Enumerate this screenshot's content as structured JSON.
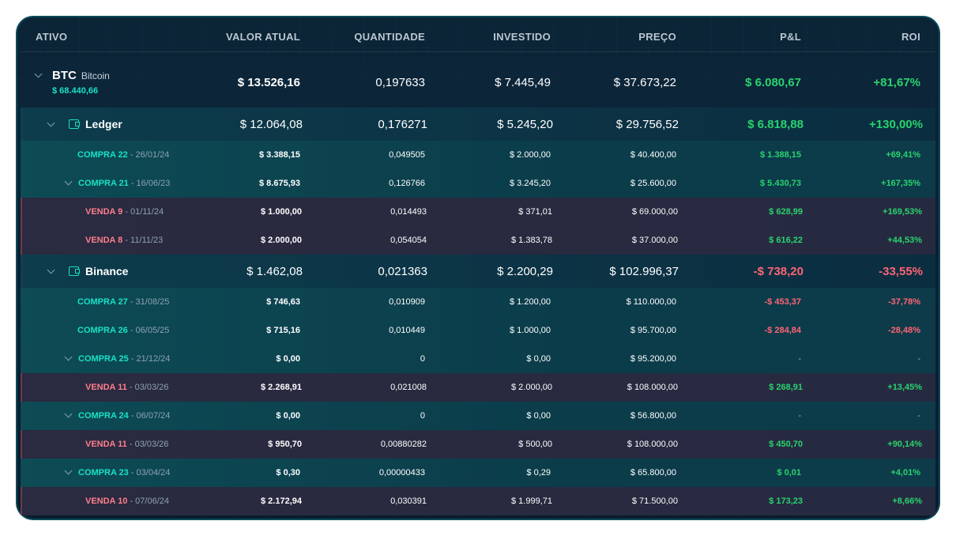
{
  "headers": [
    "ATIVO",
    "VALOR ATUAL",
    "QUANTIDADE",
    "INVESTIDO",
    "PREÇO",
    "P&L",
    "ROI"
  ],
  "asset": {
    "symbol": "BTC",
    "name": "Bitcoin",
    "price": "$ 68.440,66",
    "valor": "$ 13.526,16",
    "qtd": "0,197633",
    "inv": "$ 7.445,49",
    "preco": "$ 37.673,22",
    "pl": "$ 6.080,67",
    "roi": "+81,67%"
  },
  "rows": [
    {
      "type": "wallet",
      "name": "Ledger",
      "valor": "$ 12.064,08",
      "qtd": "0,176271",
      "inv": "$ 5.245,20",
      "preco": "$ 29.756,52",
      "pl": "$ 6.818,88",
      "roi": "+130,00%",
      "sign": "pos"
    },
    {
      "type": "buy",
      "expanded": false,
      "label": "COMPRA 22",
      "date": " - 26/01/24",
      "valor": "$ 3.388,15",
      "qtd": "0,049505",
      "inv": "$ 2.000,00",
      "preco": "$ 40.400,00",
      "pl": "$ 1.388,15",
      "roi": "+69,41%",
      "sign": "pos"
    },
    {
      "type": "buy",
      "expanded": true,
      "label": "COMPRA 21",
      "date": " - 16/06/23",
      "valor": "$ 8.675,93",
      "qtd": "0,126766",
      "inv": "$ 3.245,20",
      "preco": "$ 25.600,00",
      "pl": "$ 5.430,73",
      "roi": "+167,35%",
      "sign": "pos"
    },
    {
      "type": "sell",
      "label": "VENDA 9",
      "date": " - 01/11/24",
      "valor": "$ 1.000,00",
      "qtd": "0,014493",
      "inv": "$ 371,01",
      "preco": "$ 69.000,00",
      "pl": "$ 628,99",
      "roi": "+169,53%",
      "sign": "pos"
    },
    {
      "type": "sell",
      "label": "VENDA 8",
      "date": " - 11/11/23",
      "valor": "$ 2.000,00",
      "qtd": "0,054054",
      "inv": "$ 1.383,78",
      "preco": "$ 37.000,00",
      "pl": "$ 616,22",
      "roi": "+44,53%",
      "sign": "pos"
    },
    {
      "type": "wallet",
      "name": "Binance",
      "valor": "$ 1.462,08",
      "qtd": "0,021363",
      "inv": "$ 2.200,29",
      "preco": "$ 102.996,37",
      "pl": "-$ 738,20",
      "roi": "-33,55%",
      "sign": "neg"
    },
    {
      "type": "buy",
      "expanded": false,
      "label": "COMPRA 27",
      "date": " - 31/08/25",
      "valor": "$ 746,63",
      "qtd": "0,010909",
      "inv": "$ 1.200,00",
      "preco": "$ 110.000,00",
      "pl": "-$ 453,37",
      "roi": "-37,78%",
      "sign": "neg"
    },
    {
      "type": "buy",
      "expanded": false,
      "label": "COMPRA 26",
      "date": " - 06/05/25",
      "valor": "$ 715,16",
      "qtd": "0,010449",
      "inv": "$ 1.000,00",
      "preco": "$ 95.700,00",
      "pl": "-$ 284,84",
      "roi": "-28,48%",
      "sign": "neg"
    },
    {
      "type": "buy",
      "expanded": true,
      "label": "COMPRA 25",
      "date": " - 21/12/24",
      "valor": "$ 0,00",
      "qtd": "0",
      "inv": "$ 0,00",
      "preco": "$ 95.200,00",
      "pl": "-",
      "roi": "-",
      "sign": "dash"
    },
    {
      "type": "sell",
      "label": "VENDA 11",
      "date": " - 03/03/26",
      "valor": "$ 2.268,91",
      "qtd": "0,021008",
      "inv": "$ 2.000,00",
      "preco": "$ 108.000,00",
      "pl": "$ 268,91",
      "roi": "+13,45%",
      "sign": "pos"
    },
    {
      "type": "buy",
      "expanded": true,
      "label": "COMPRA 24",
      "date": " - 06/07/24",
      "valor": "$ 0,00",
      "qtd": "0",
      "inv": "$ 0,00",
      "preco": "$ 56.800,00",
      "pl": "-",
      "roi": "-",
      "sign": "dash"
    },
    {
      "type": "sell",
      "label": "VENDA 11",
      "date": " - 03/03/26",
      "valor": "$ 950,70",
      "qtd": "0,00880282",
      "inv": "$ 500,00",
      "preco": "$ 108.000,00",
      "pl": "$ 450,70",
      "roi": "+90,14%",
      "sign": "pos"
    },
    {
      "type": "buy",
      "expanded": true,
      "label": "COMPRA 23",
      "date": " - 03/04/24",
      "valor": "$ 0,30",
      "qtd": "0,00000433",
      "inv": "$ 0,29",
      "preco": "$ 65.800,00",
      "pl": "$ 0,01",
      "roi": "+4,01%",
      "sign": "pos"
    },
    {
      "type": "sell",
      "label": "VENDA 10",
      "date": " - 07/06/24",
      "valor": "$ 2.172,94",
      "qtd": "0,030391",
      "inv": "$ 1.999,71",
      "preco": "$ 71.500,00",
      "pl": "$ 173,23",
      "roi": "+8,66%",
      "sign": "pos"
    }
  ]
}
